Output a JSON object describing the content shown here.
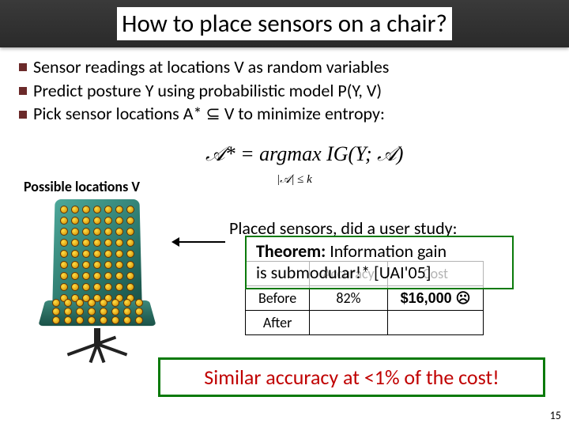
{
  "title": "How to place sensors on a chair?",
  "bullets": [
    "Sensor readings at locations V as random variables",
    "Predict posture Y using probabilistic model P(Y, V)",
    "Pick sensor locations A* ⊆ V to minimize entropy:"
  ],
  "formula_main": "𝒜* = argmax IG(Y; 𝒜)",
  "formula_sub": "|𝒜| ≤ k",
  "possible_label_prefix": "Possible locations ",
  "possible_label_bold": "V",
  "placed_text": "Placed sensors, did a user study:",
  "theorem": {
    "label": "Theorem:",
    "body_1": " Information gain",
    "body_2": "is submodular!* [UAI'05]",
    "overlap_accuracy": "Accuracy",
    "overlap_cost": "Cost",
    "border_color": "#0a7a0a"
  },
  "table": {
    "headers": [
      "",
      "Accuracy",
      "Cost"
    ],
    "rows": [
      [
        "Before",
        "82%",
        "$16,000 ☹"
      ],
      [
        "After",
        "",
        ""
      ]
    ]
  },
  "summary": "Similar accuracy at <1% of the cost!",
  "slide_number": "15",
  "colors": {
    "title_bg_top": "#3a3a3a",
    "title_bg_bot": "#2a2a2a",
    "bullet_marker": "#6b2a2a",
    "box_border": "#0a7a0a",
    "summary_text": "#c00000",
    "chair_a": "#4da89a",
    "chair_b": "#1a5248",
    "sensor_fill": "#ffdd44",
    "sensor_edge": "#663300"
  },
  "chair": {
    "back_grid_cols": 7,
    "back_grid_rows": 9,
    "seat_grid_cols": 8,
    "seat_grid_rows": 3
  }
}
